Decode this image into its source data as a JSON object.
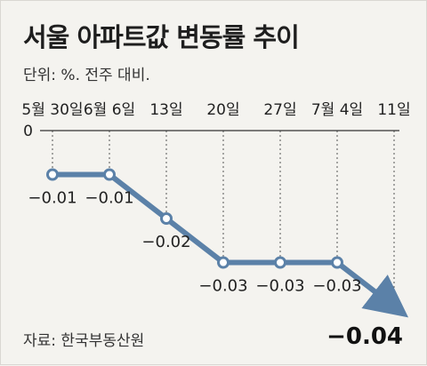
{
  "title": "서울 아파트값 변동률 추이",
  "unit_note": "단위: %. 전주 대비.",
  "source": "자료: 한국부동산원",
  "colors": {
    "line": "#5b81a8",
    "marker_fill": "#ffffff",
    "grid": "#555555",
    "background": "#f4f3ef"
  },
  "chart_data": {
    "type": "line",
    "categories": [
      "5월 30일",
      "6월 6일",
      "13일",
      "20일",
      "27일",
      "7월 4일",
      "11일"
    ],
    "values": [
      -0.01,
      -0.01,
      -0.02,
      -0.03,
      -0.03,
      -0.03,
      -0.04
    ],
    "value_labels": [
      "-0.01",
      "-0.01",
      "-0.02",
      "-0.03",
      "-0.03",
      "-0.03",
      "-0.04"
    ],
    "zero_label": "0",
    "ylim": [
      -0.04,
      0
    ],
    "grid": "vertical dotted lines per category",
    "legend": "none"
  }
}
